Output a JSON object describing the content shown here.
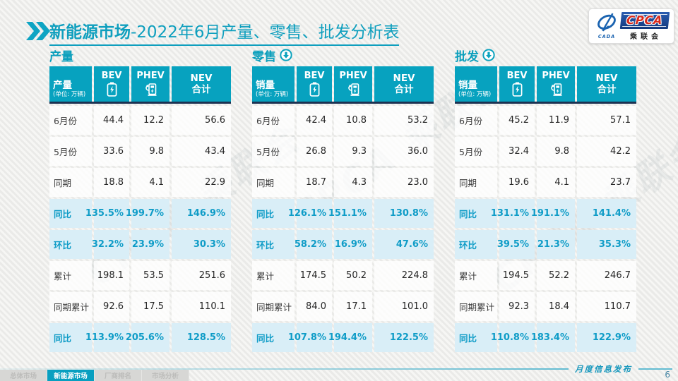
{
  "header": {
    "title_emphasis": "新能源市场",
    "title_rest": "-2022年6月产量、零售、批发分析表",
    "logo": {
      "cpca_text": "CPCA",
      "org_text": "乘联会",
      "emblem_text": "CADA"
    }
  },
  "watermark_text": "CPCA 乘联会",
  "tables": [
    {
      "key": "production",
      "section_label": "产量",
      "has_down_arrow": false,
      "head_label": "产量",
      "head_unit": "(单位: 万辆)",
      "col_bev": "BEV",
      "col_phev": "PHEV",
      "col_nev_line1": "NEV",
      "col_nev_line2": "合计",
      "rows": [
        {
          "label": "6月份",
          "values": [
            "44.4",
            "12.2",
            "56.6"
          ],
          "highlight": false
        },
        {
          "label": "5月份",
          "values": [
            "33.6",
            "9.8",
            "43.4"
          ],
          "highlight": false
        },
        {
          "label": "同期",
          "values": [
            "18.8",
            "4.1",
            "22.9"
          ],
          "highlight": false
        },
        {
          "label": "同比",
          "values": [
            "135.5%",
            "199.7%",
            "146.9%"
          ],
          "highlight": true
        },
        {
          "label": "环比",
          "values": [
            "32.2%",
            "23.9%",
            "30.3%"
          ],
          "highlight": true
        },
        {
          "label": "累计",
          "values": [
            "198.1",
            "53.5",
            "251.6"
          ],
          "highlight": false
        },
        {
          "label": "同期累计",
          "values": [
            "92.6",
            "17.5",
            "110.1"
          ],
          "highlight": false
        },
        {
          "label": "同比",
          "values": [
            "113.9%",
            "205.6%",
            "128.5%"
          ],
          "highlight": true
        }
      ]
    },
    {
      "key": "retail",
      "section_label": "零售",
      "has_down_arrow": true,
      "head_label": "销量",
      "head_unit": "(单位: 万辆)",
      "col_bev": "BEV",
      "col_phev": "PHEV",
      "col_nev_line1": "NEV",
      "col_nev_line2": "合计",
      "rows": [
        {
          "label": "6月份",
          "values": [
            "42.4",
            "10.8",
            "53.2"
          ],
          "highlight": false
        },
        {
          "label": "5月份",
          "values": [
            "26.8",
            "9.3",
            "36.0"
          ],
          "highlight": false
        },
        {
          "label": "同期",
          "values": [
            "18.7",
            "4.3",
            "23.0"
          ],
          "highlight": false
        },
        {
          "label": "同比",
          "values": [
            "126.1%",
            "151.1%",
            "130.8%"
          ],
          "highlight": true
        },
        {
          "label": "环比",
          "values": [
            "58.2%",
            "16.9%",
            "47.6%"
          ],
          "highlight": true
        },
        {
          "label": "累计",
          "values": [
            "174.5",
            "50.2",
            "224.8"
          ],
          "highlight": false
        },
        {
          "label": "同期累计",
          "values": [
            "84.0",
            "17.1",
            "101.0"
          ],
          "highlight": false
        },
        {
          "label": "同比",
          "values": [
            "107.8%",
            "194.4%",
            "122.5%"
          ],
          "highlight": true
        }
      ]
    },
    {
      "key": "wholesale",
      "section_label": "批发",
      "has_down_arrow": true,
      "head_label": "销量",
      "head_unit": "(单位: 万辆)",
      "col_bev": "BEV",
      "col_phev": "PHEV",
      "col_nev_line1": "NEV",
      "col_nev_line2": "合计",
      "rows": [
        {
          "label": "6月份",
          "values": [
            "45.2",
            "11.9",
            "57.1"
          ],
          "highlight": false
        },
        {
          "label": "5月份",
          "values": [
            "32.4",
            "9.8",
            "42.2"
          ],
          "highlight": false
        },
        {
          "label": "同期",
          "values": [
            "19.6",
            "4.1",
            "23.7"
          ],
          "highlight": false
        },
        {
          "label": "同比",
          "values": [
            "131.1%",
            "191.1%",
            "141.4%"
          ],
          "highlight": true
        },
        {
          "label": "环比",
          "values": [
            "39.5%",
            "21.3%",
            "35.3%"
          ],
          "highlight": true
        },
        {
          "label": "累计",
          "values": [
            "194.5",
            "52.2",
            "246.7"
          ],
          "highlight": false
        },
        {
          "label": "同期累计",
          "values": [
            "92.3",
            "18.4",
            "110.7"
          ],
          "highlight": false
        },
        {
          "label": "同比",
          "values": [
            "110.8%",
            "183.4%",
            "122.9%"
          ],
          "highlight": true
        }
      ]
    }
  ],
  "footer": {
    "tabs": [
      {
        "label": "总体市场",
        "active": false
      },
      {
        "label": "新能源市场",
        "active": true
      },
      {
        "label": "厂商排名",
        "active": false
      },
      {
        "label": "市场分析",
        "active": false
      }
    ],
    "publication": "月度信息发布",
    "page_number": "6"
  },
  "colors": {
    "accent_teal": "#08a2bf",
    "dark_navy": "#1c3252",
    "highlight_bg": "#d9eef7",
    "highlight_text": "#0f9cc7"
  }
}
